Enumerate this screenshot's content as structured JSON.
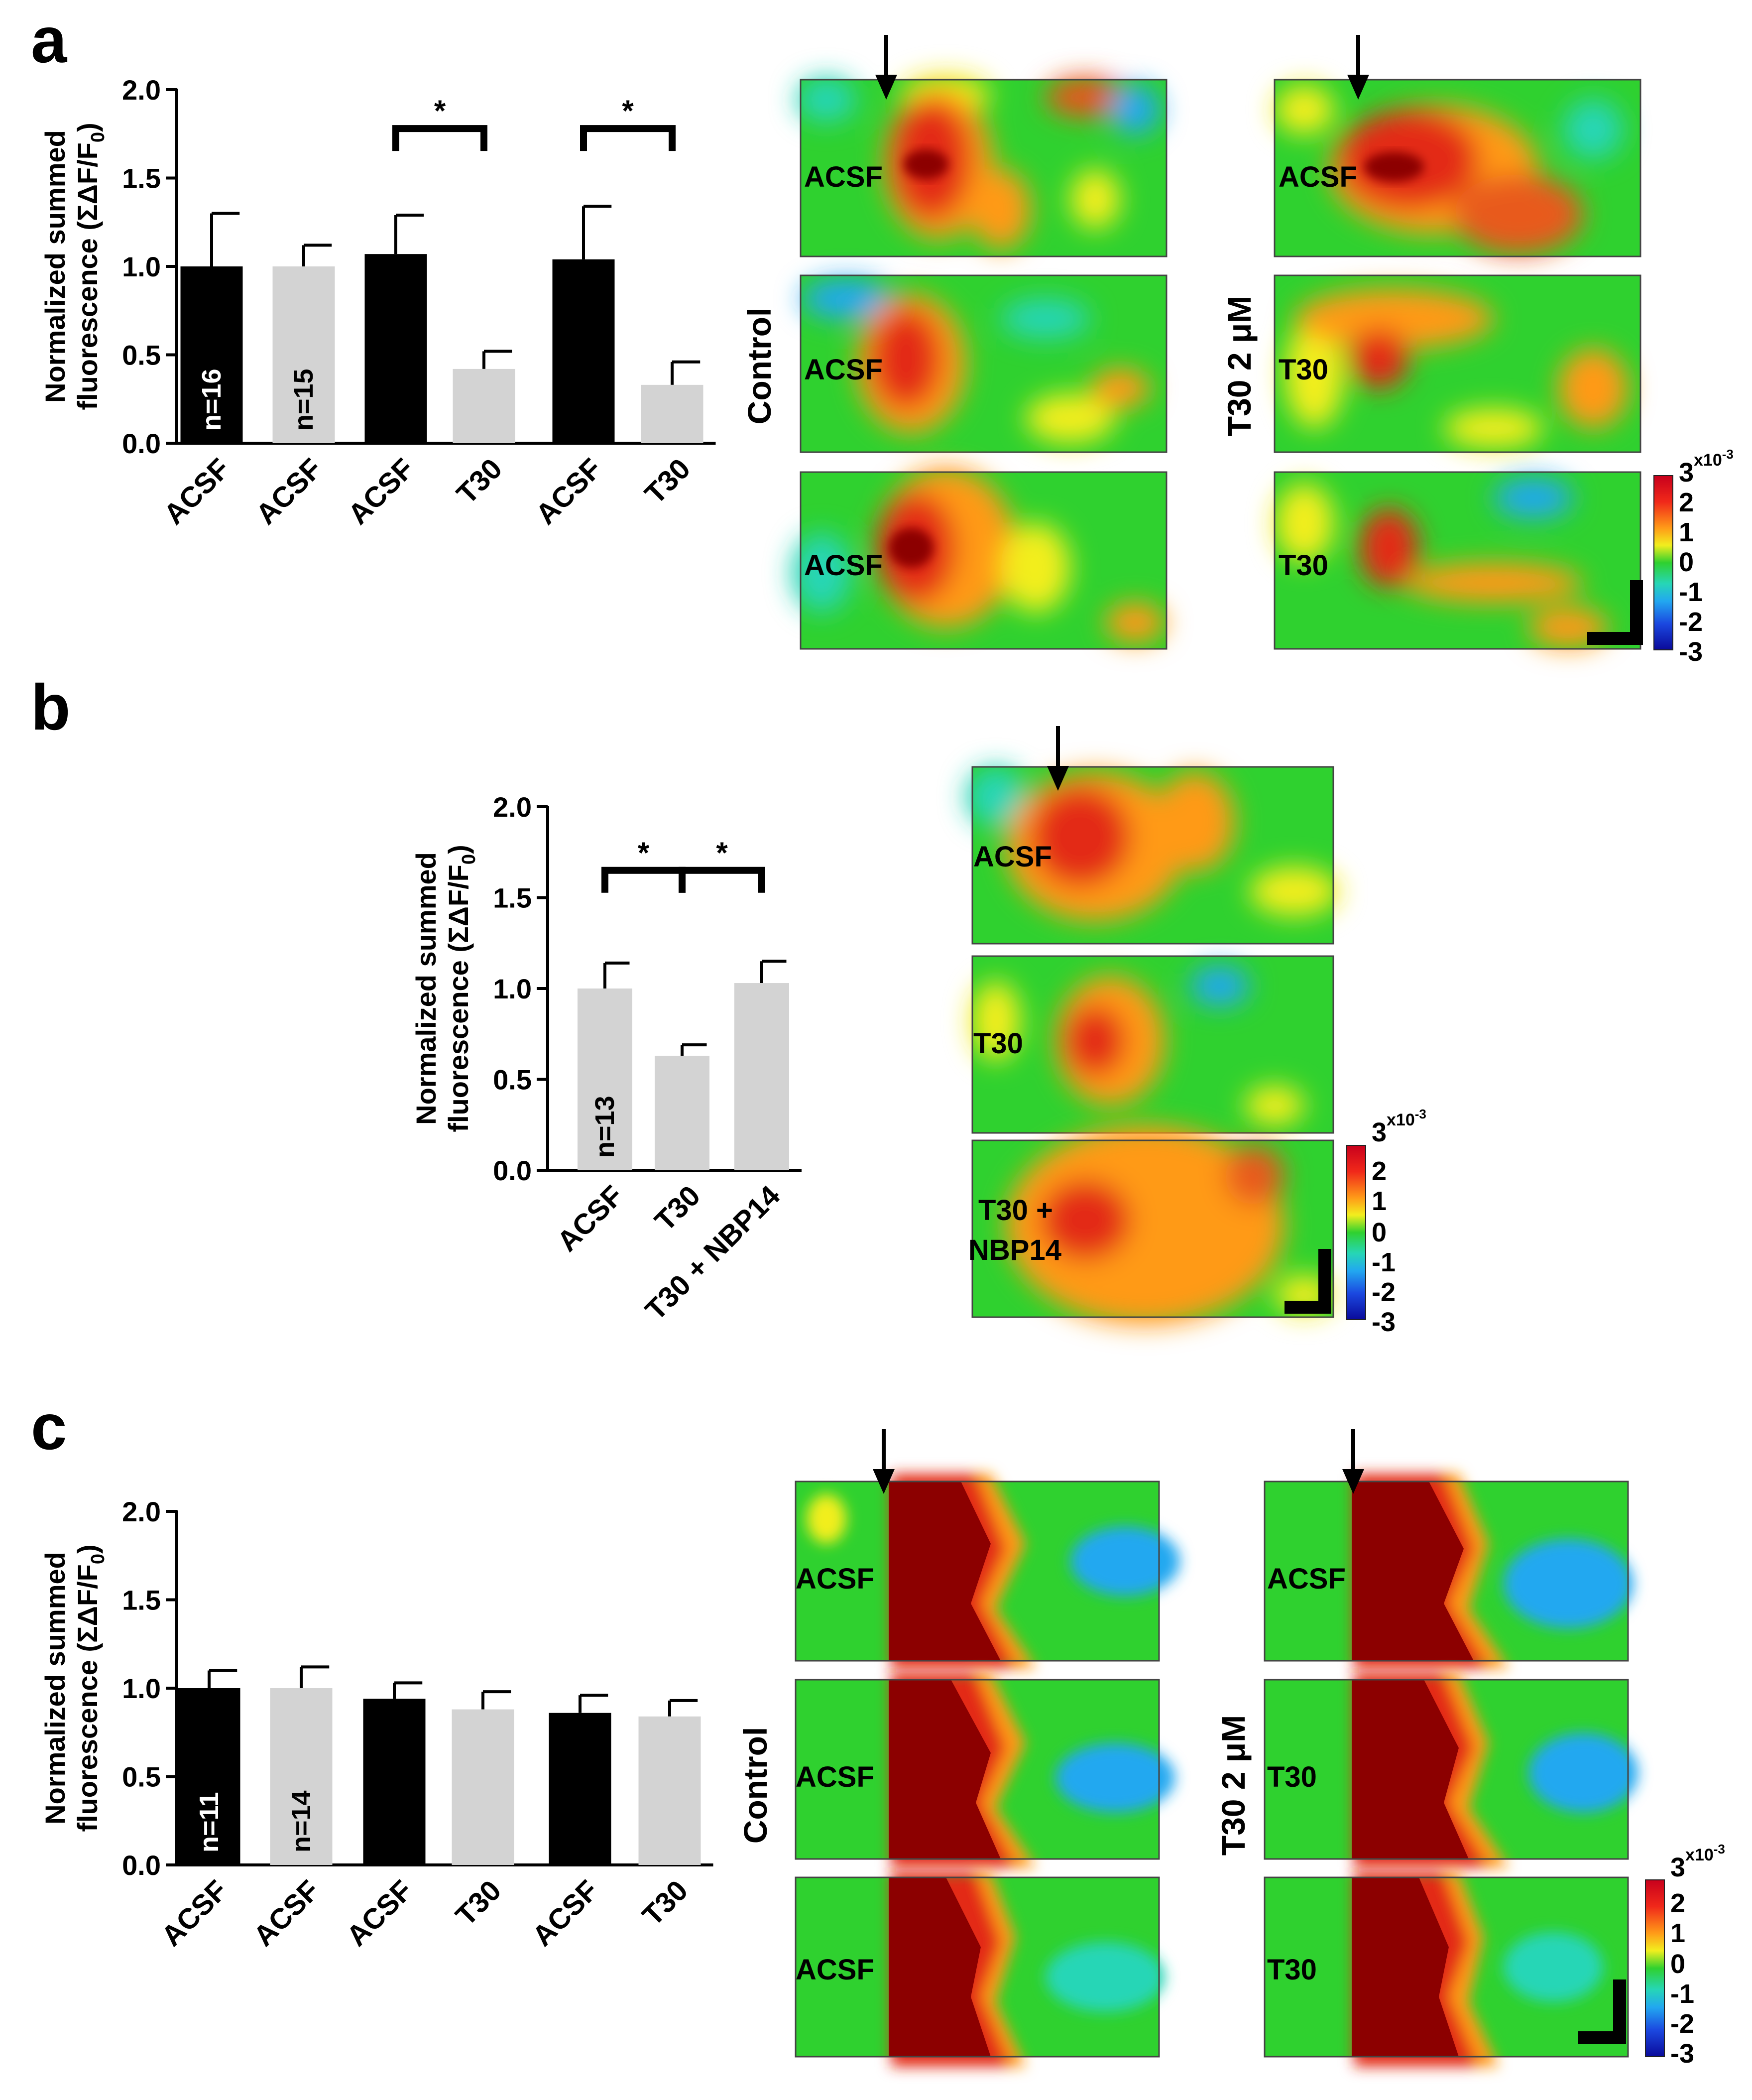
{
  "panel_labels": [
    "a",
    "b",
    "c"
  ],
  "y_axis": {
    "line1": "Normalized summed",
    "line2": "fluorescence (ΣΔF/F",
    "sub": "0",
    "close": ")"
  },
  "condition_labels": {
    "control": "Control",
    "t30": "T30 2 μM"
  },
  "colorbar": {
    "ticks": [
      "3",
      "2",
      "1",
      "0",
      "-1",
      "-2",
      "-3"
    ],
    "exponent_base": "x10",
    "exponent_power": "-3"
  },
  "colors": {
    "black_bar": "#000000",
    "grey_bar": "#d3d3d3",
    "green": "#2fd12f",
    "red": "#e32a18",
    "dark_red": "#8c0000"
  },
  "chart_data": [
    {
      "id": "a",
      "type": "bar",
      "categories": [
        "ACSF",
        "ACSF",
        "ACSF",
        "T30",
        "ACSF",
        "T30"
      ],
      "values": [
        1.0,
        1.0,
        1.07,
        0.42,
        1.04,
        0.33
      ],
      "errors": [
        0.3,
        0.12,
        0.22,
        0.1,
        0.3,
        0.13
      ],
      "bar_colors": [
        "black",
        "grey",
        "black",
        "grey",
        "black",
        "grey"
      ],
      "n_labels": [
        "n=16",
        "n=15",
        "",
        "",
        "",
        ""
      ],
      "significance": [
        {
          "from": 2,
          "to": 3,
          "label": "*"
        },
        {
          "from": 4,
          "to": 5,
          "label": "*"
        }
      ],
      "ylim": [
        0,
        2.0
      ],
      "yticks": [
        "0.0",
        "0.5",
        "1.0",
        "1.5",
        "2.0"
      ],
      "ylabel": "Normalized summed fluorescence (ΣΔF/F0)"
    },
    {
      "id": "b",
      "type": "bar",
      "categories": [
        "ACSF",
        "T30",
        "T30 + NBP14"
      ],
      "values": [
        1.0,
        0.63,
        1.03
      ],
      "errors": [
        0.14,
        0.06,
        0.12
      ],
      "bar_colors": [
        "grey",
        "grey",
        "grey"
      ],
      "n_labels": [
        "n=13",
        "",
        ""
      ],
      "significance": [
        {
          "from": 0,
          "to": 1,
          "label": "*"
        },
        {
          "from": 1,
          "to": 2,
          "label": "*"
        }
      ],
      "ylim": [
        0,
        2.0
      ],
      "yticks": [
        "0.0",
        "0.5",
        "1.0",
        "1.5",
        "2.0"
      ],
      "ylabel": "Normalized summed fluorescence (ΣΔF/F0)"
    },
    {
      "id": "c",
      "type": "bar",
      "categories": [
        "ACSF",
        "ACSF",
        "ACSF",
        "T30",
        "ACSF",
        "T30"
      ],
      "values": [
        1.0,
        1.0,
        0.94,
        0.88,
        0.86,
        0.84
      ],
      "errors": [
        0.1,
        0.12,
        0.09,
        0.1,
        0.1,
        0.09
      ],
      "bar_colors": [
        "black",
        "grey",
        "black",
        "grey",
        "black",
        "grey"
      ],
      "n_labels": [
        "n=11",
        "n=14",
        "",
        "",
        "",
        ""
      ],
      "significance": [],
      "ylim": [
        0,
        2.0
      ],
      "yticks": [
        "0.0",
        "0.5",
        "1.0",
        "1.5",
        "2.0"
      ],
      "ylabel": "Normalized summed fluorescence (ΣΔF/F0)"
    }
  ],
  "heatmaps": {
    "a_control": [
      "ACSF",
      "ACSF",
      "ACSF"
    ],
    "a_t30": [
      "ACSF",
      "T30",
      "T30"
    ],
    "b": [
      "ACSF",
      "T30",
      "T30 +",
      "NBP14"
    ],
    "c_control": [
      "ACSF",
      "ACSF",
      "ACSF"
    ],
    "c_t30": [
      "ACSF",
      "T30",
      "T30"
    ]
  }
}
